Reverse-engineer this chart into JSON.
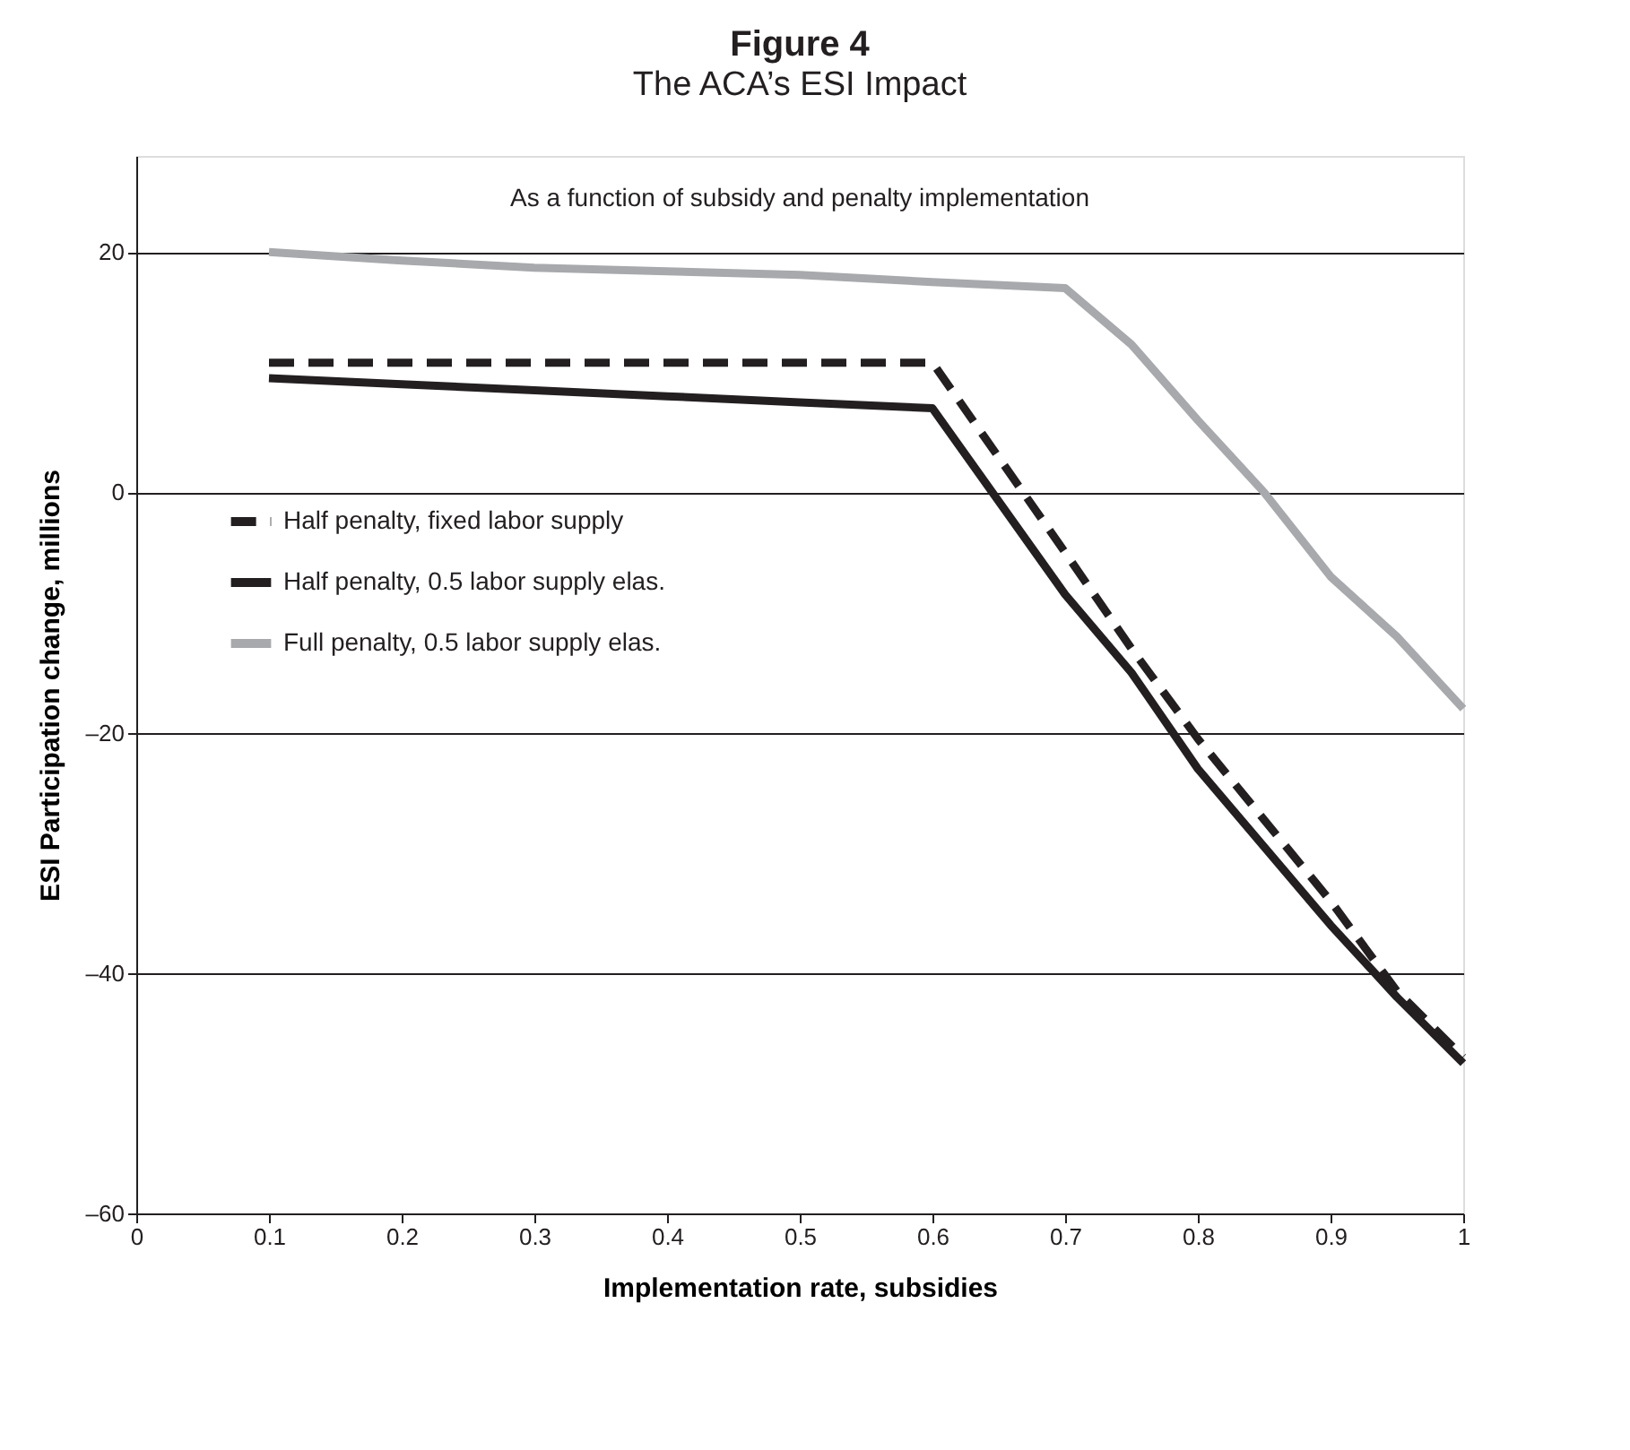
{
  "chart_data": {
    "type": "line",
    "title": "Figure 4",
    "subtitle": "The ACA’s ESI Impact",
    "xlabel": "Implementation rate, subsidies",
    "ylabel": "ESI Participation change, millions",
    "annotations": [
      "As a function of subsidy and penalty implementation"
    ],
    "xlim": [
      0,
      1
    ],
    "xticks": [
      0,
      0.1,
      0.2,
      0.3,
      0.4,
      0.5,
      0.6,
      0.7,
      0.8,
      0.9,
      1
    ],
    "ylim": [
      -60,
      28
    ],
    "yticks": [
      {
        "value": -60,
        "label": "–60"
      },
      {
        "value": -40,
        "label": "–40"
      },
      {
        "value": -20,
        "label": "–20"
      },
      0,
      20
    ],
    "grid": "y",
    "legend": "left",
    "marker": "none",
    "series": [
      {
        "name": "Half penalty, fixed labor supply",
        "color": "#231f20",
        "line_style": "dashed",
        "x": [
          0.1,
          0.2,
          0.3,
          0.4,
          0.5,
          0.6,
          0.7,
          0.75,
          0.8,
          0.9,
          0.95,
          1
        ],
        "values": [
          10.8,
          10.8,
          10.8,
          10.8,
          10.8,
          10.8,
          -5,
          -13,
          -20.5,
          -34,
          -41.5,
          -47
        ]
      },
      {
        "name": "Half penalty, 0.5 labor supply elas.",
        "color": "#231f20",
        "line_style": "solid",
        "x": [
          0.1,
          0.2,
          0.3,
          0.4,
          0.5,
          0.6,
          0.7,
          0.75,
          0.8,
          0.9,
          0.95,
          1
        ],
        "values": [
          9.5,
          9,
          8.5,
          8,
          7.5,
          7,
          -8.5,
          -15,
          -23,
          -36,
          -42,
          -47.5
        ]
      },
      {
        "name": "Full penalty, 0.5 labor supply elas.",
        "color": "#a7a9ac",
        "line_style": "solid",
        "x": [
          0.1,
          0.2,
          0.3,
          0.4,
          0.5,
          0.6,
          0.7,
          0.75,
          0.8,
          0.85,
          0.9,
          0.95,
          1
        ],
        "values": [
          20,
          19.3,
          18.7,
          18.4,
          18.1,
          17.5,
          17,
          12.3,
          6,
          0,
          -7,
          -12,
          -18
        ]
      }
    ]
  }
}
